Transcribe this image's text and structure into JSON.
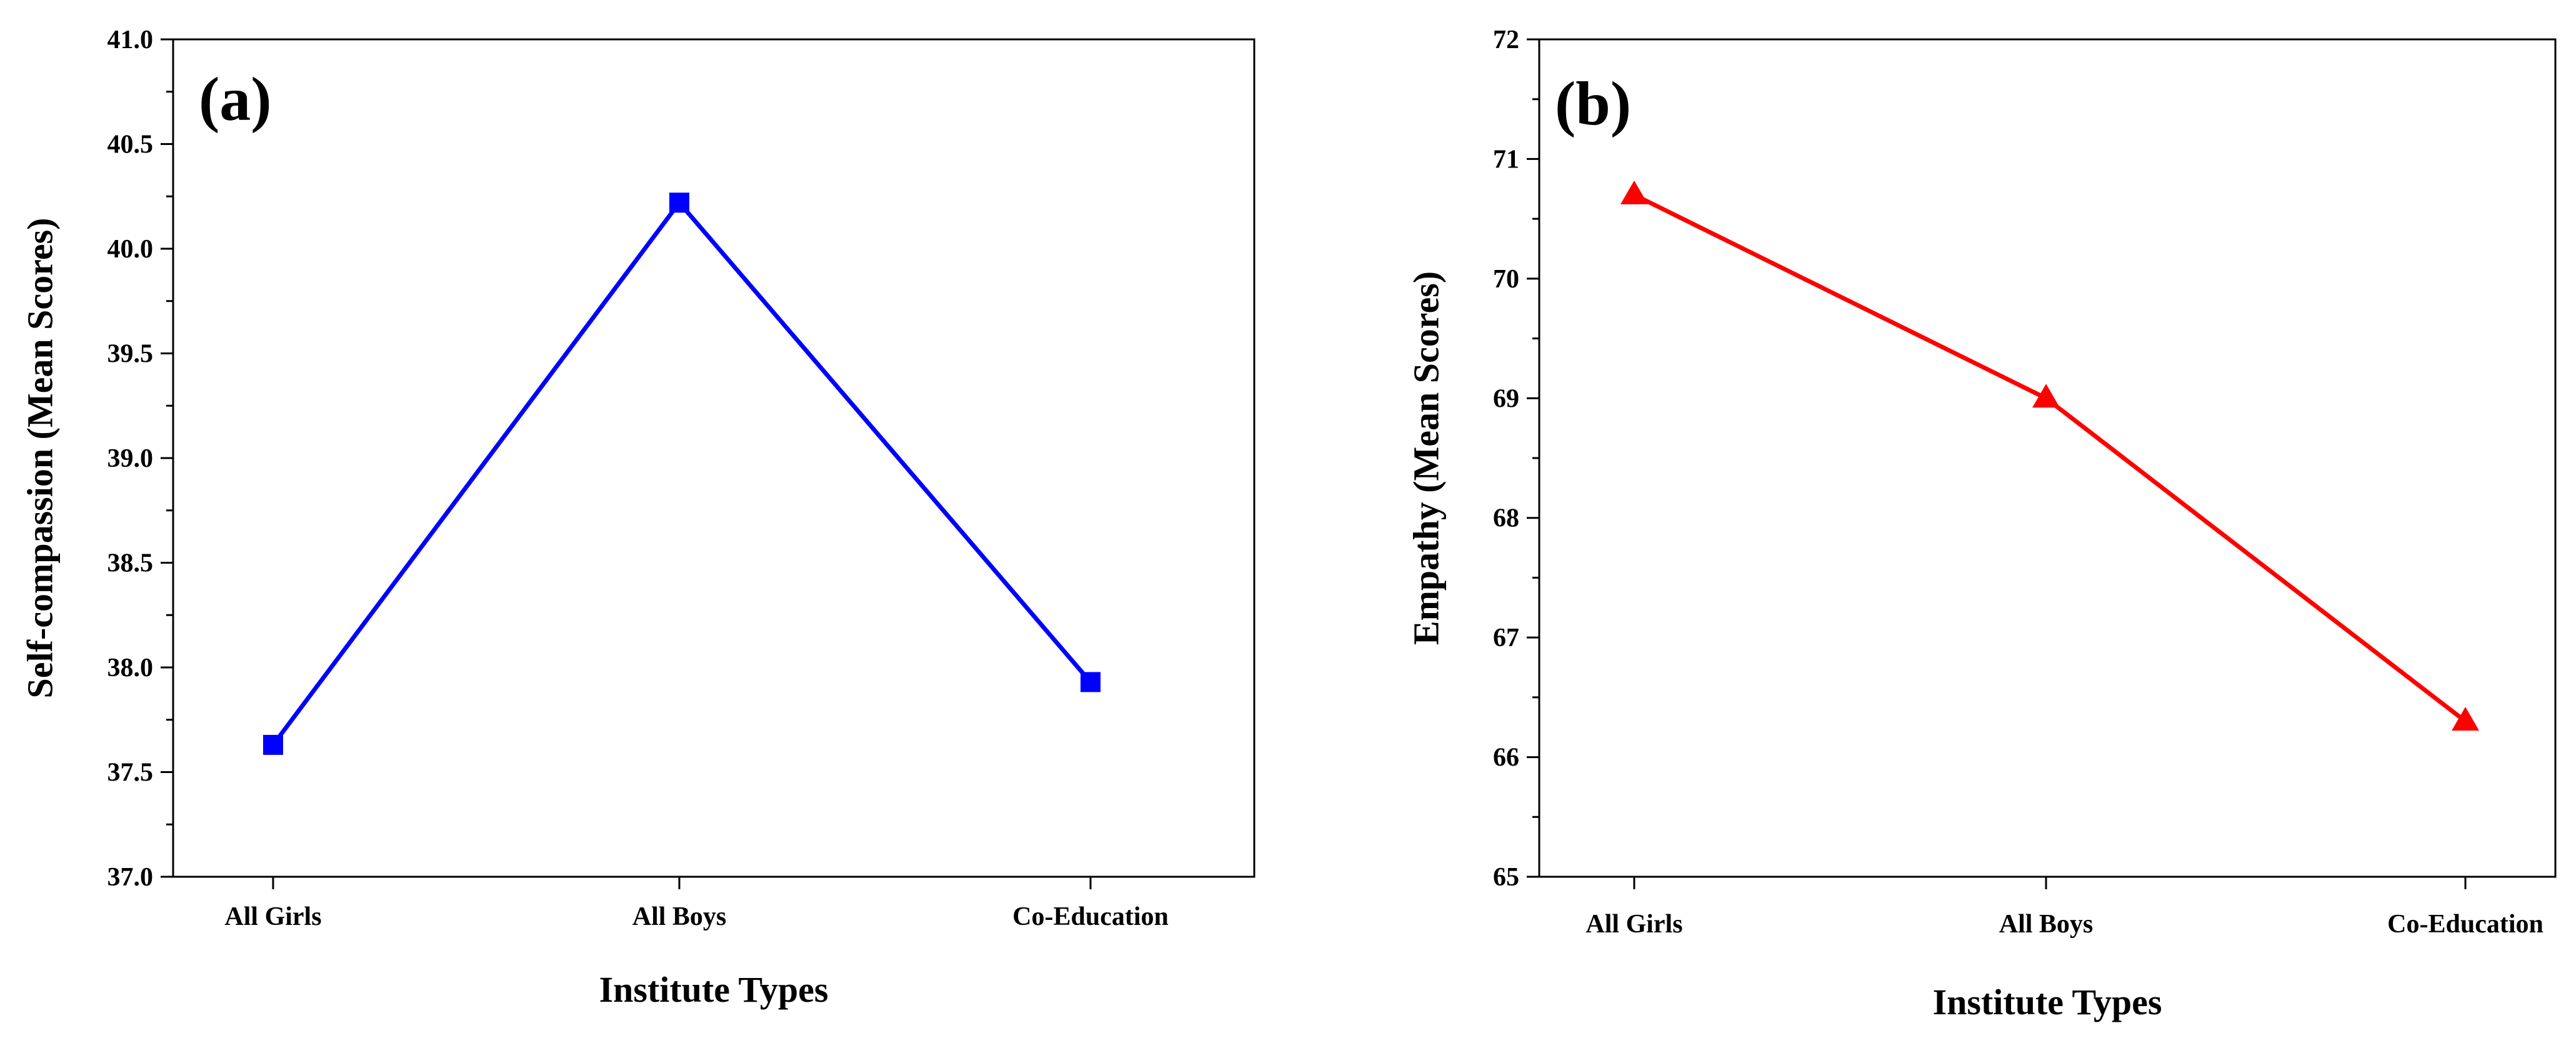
{
  "chart_data": [
    {
      "type": "line",
      "panel_label": "(a)",
      "categories": [
        "All Girls",
        "All Boys",
        "Co-Education"
      ],
      "series": [
        {
          "name": "Self-compassion",
          "values": [
            37.63,
            40.22,
            37.93
          ],
          "color": "#0000ff",
          "marker": "square"
        }
      ],
      "xlabel": "Institute Types",
      "ylabel": "Self-compassion (Mean Scores)",
      "ylim": [
        37.0,
        41.0
      ],
      "yticks": [
        "37.0",
        "37.5",
        "38.0",
        "38.5",
        "39.0",
        "39.5",
        "40.0",
        "40.5",
        "41.0"
      ],
      "grid": false,
      "legend": "none"
    },
    {
      "type": "line",
      "panel_label": "(b)",
      "categories": [
        "All Girls",
        "All Boys",
        "Co-Education"
      ],
      "series": [
        {
          "name": "Empathy",
          "values": [
            70.7,
            69.0,
            66.3
          ],
          "color": "#ff0000",
          "marker": "triangle"
        }
      ],
      "xlabel": "Institute Types",
      "ylabel": "Empathy (Mean Scores)",
      "ylim": [
        65,
        72
      ],
      "yticks": [
        "65",
        "66",
        "67",
        "68",
        "69",
        "70",
        "71",
        "72"
      ],
      "grid": false,
      "legend": "none"
    }
  ]
}
